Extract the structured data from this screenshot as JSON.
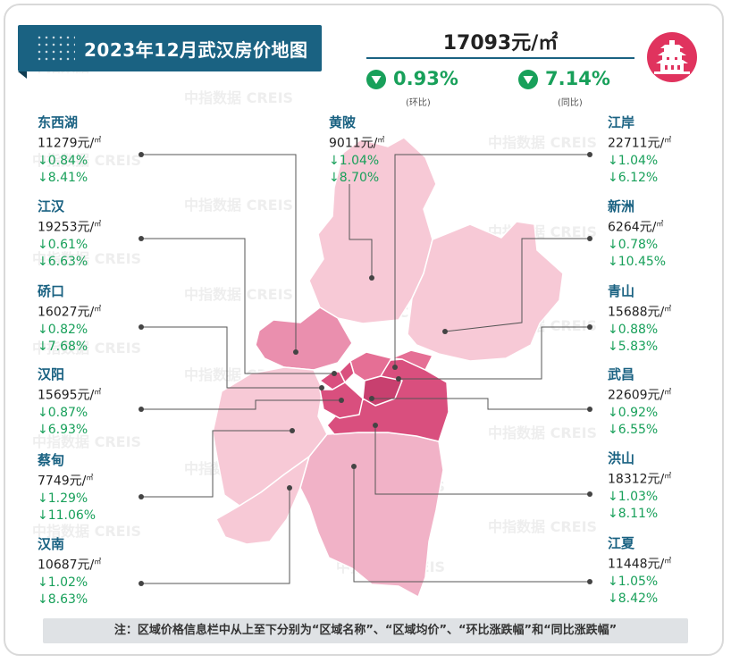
{
  "title": "2023年12月武汉房价地图",
  "city_avg": {
    "value": "17093元/㎡"
  },
  "summary": [
    {
      "value": "0.93%",
      "label": "(环比)",
      "icon": "down-triangle-icon"
    },
    {
      "value": "7.14%",
      "label": "(同比)",
      "icon": "down-triangle-icon"
    }
  ],
  "colors": {
    "accent": "#1a6282",
    "down": "#18a05a",
    "map_light": "#f7c9d6",
    "map_mid": "#ea8fae",
    "map_dark": "#d94f7e",
    "logo": "#e0335e"
  },
  "districts": [
    {
      "name": "东西湖",
      "price": "11279元/",
      "unit": "㎡",
      "mom": "↓0.84%",
      "yoy": "↓8.41%"
    },
    {
      "name": "江汉",
      "price": "19253元/",
      "unit": "㎡",
      "mom": "↓0.61%",
      "yoy": "↓6.63%"
    },
    {
      "name": "硚口",
      "price": "16027元/",
      "unit": "㎡",
      "mom": "↓0.82%",
      "yoy": "↓7.68%"
    },
    {
      "name": "汉阳",
      "price": "15695元/",
      "unit": "㎡",
      "mom": "↓0.87%",
      "yoy": "↓6.93%"
    },
    {
      "name": "蔡甸",
      "price": "7749元/",
      "unit": "㎡",
      "mom": "↓1.29%",
      "yoy": "↓11.06%"
    },
    {
      "name": "汉南",
      "price": "10687元/",
      "unit": "㎡",
      "mom": "↓1.02%",
      "yoy": "↓8.63%"
    },
    {
      "name": "黄陂",
      "price": "9011元/",
      "unit": "㎡",
      "mom": "↓1.04%",
      "yoy": "↓8.70%"
    },
    {
      "name": "江岸",
      "price": "22711元/",
      "unit": "㎡",
      "mom": "↓1.04%",
      "yoy": "↓6.12%"
    },
    {
      "name": "新洲",
      "price": "6264元/",
      "unit": "㎡",
      "mom": "↓0.78%",
      "yoy": "↓10.45%"
    },
    {
      "name": "青山",
      "price": "15688元/",
      "unit": "㎡",
      "mom": "↓0.88%",
      "yoy": "↓5.83%"
    },
    {
      "name": "武昌",
      "price": "22609元/",
      "unit": "㎡",
      "mom": "↓0.92%",
      "yoy": "↓6.55%"
    },
    {
      "name": "洪山",
      "price": "18312元/",
      "unit": "㎡",
      "mom": "↓1.03%",
      "yoy": "↓8.11%"
    },
    {
      "name": "江夏",
      "price": "11448元/",
      "unit": "㎡",
      "mom": "↓1.05%",
      "yoy": "↓8.42%"
    }
  ],
  "note": "注：区域价格信息栏中从上至下分别为“区域名称”、“区域均价”、“环比涨跌幅”和“同比涨跌幅”",
  "watermark": "中指数据 CREIS",
  "logo_text": "中指"
}
